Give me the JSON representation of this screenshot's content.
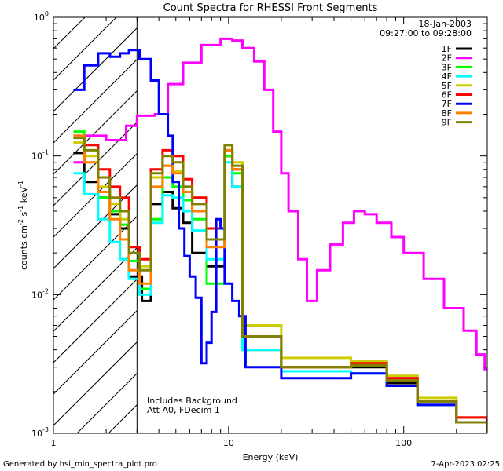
{
  "chart_data": {
    "type": "line",
    "title": "Count Spectra for RHESSI Front Segments",
    "xlabel": "Energy (keV)",
    "ylabel_parts": [
      "counts cm",
      "-2",
      " s",
      "-1",
      " keV",
      "-1"
    ],
    "xscale": "log",
    "yscale": "log",
    "xlim": [
      1,
      300
    ],
    "ylim": [
      0.001,
      1
    ],
    "x_ticks": [
      {
        "value": 1,
        "label": "1"
      },
      {
        "value": 10,
        "label": "10"
      },
      {
        "value": 100,
        "label": "100"
      }
    ],
    "y_ticks": [
      {
        "value": 1,
        "base": "10",
        "exp": "0"
      },
      {
        "value": 0.1,
        "base": "10",
        "exp": "-1"
      },
      {
        "value": 0.01,
        "base": "10",
        "exp": "-2"
      },
      {
        "value": 0.001,
        "base": "10",
        "exp": "-3"
      }
    ],
    "hatch_region_kev": [
      1,
      3
    ],
    "date": "18-Jan-2003",
    "time_range": "09:27:00 to 09:28:00",
    "notes": [
      "Includes Background",
      "Att A0, FDecim 1"
    ],
    "series": [
      {
        "name": "1F",
        "color": "#000000",
        "points": [
          [
            1.3,
            0.105
          ],
          [
            1.5,
            0.065
          ],
          [
            1.8,
            0.05
          ],
          [
            2.1,
            0.038
          ],
          [
            2.4,
            0.03
          ],
          [
            2.7,
            0.0135
          ],
          [
            3.2,
            0.009
          ],
          [
            3.6,
            0.045
          ],
          [
            4.2,
            0.055
          ],
          [
            4.8,
            0.042
          ],
          [
            5.5,
            0.033
          ],
          [
            6.2,
            0.02
          ],
          [
            7.5,
            0.016
          ],
          [
            9.5,
            0.1
          ],
          [
            10.5,
            0.06
          ],
          [
            12,
            0.004
          ],
          [
            20,
            0.003
          ],
          [
            50,
            0.003
          ],
          [
            80,
            0.0023
          ],
          [
            120,
            0.0016
          ],
          [
            200,
            0.0012
          ],
          [
            300,
            0.001
          ]
        ]
      },
      {
        "name": "2F",
        "color": "#ff00ff",
        "points": [
          [
            1.3,
            0.09
          ],
          [
            1.5,
            0.14
          ],
          [
            2,
            0.13
          ],
          [
            2.6,
            0.165
          ],
          [
            3,
            0.195
          ],
          [
            3.8,
            0.2
          ],
          [
            4.5,
            0.33
          ],
          [
            5.5,
            0.47
          ],
          [
            7,
            0.63
          ],
          [
            9,
            0.7
          ],
          [
            10.5,
            0.68
          ],
          [
            12,
            0.6
          ],
          [
            14,
            0.48
          ],
          [
            16,
            0.3
          ],
          [
            18,
            0.15
          ],
          [
            20,
            0.075
          ],
          [
            22,
            0.04
          ],
          [
            25,
            0.018
          ],
          [
            28,
            0.009
          ],
          [
            32,
            0.015
          ],
          [
            38,
            0.023
          ],
          [
            45,
            0.033
          ],
          [
            52,
            0.04
          ],
          [
            60,
            0.038
          ],
          [
            70,
            0.033
          ],
          [
            85,
            0.026
          ],
          [
            100,
            0.02
          ],
          [
            130,
            0.013
          ],
          [
            170,
            0.008
          ],
          [
            220,
            0.0055
          ],
          [
            260,
            0.0037
          ],
          [
            290,
            0.0029
          ]
        ]
      },
      {
        "name": "3F",
        "color": "#00ff00",
        "points": [
          [
            1.3,
            0.15
          ],
          [
            1.5,
            0.12
          ],
          [
            1.8,
            0.05
          ],
          [
            2.1,
            0.04
          ],
          [
            2.4,
            0.032
          ],
          [
            2.7,
            0.0175
          ],
          [
            3.1,
            0.011
          ],
          [
            3.6,
            0.035
          ],
          [
            4.2,
            0.07
          ],
          [
            4.8,
            0.06
          ],
          [
            5.5,
            0.048
          ],
          [
            6.2,
            0.035
          ],
          [
            7.5,
            0.012
          ],
          [
            9.5,
            0.1
          ],
          [
            10.5,
            0.075
          ],
          [
            12,
            0.004
          ],
          [
            20,
            0.003
          ],
          [
            50,
            0.0031
          ],
          [
            80,
            0.0024
          ],
          [
            120,
            0.0016
          ],
          [
            200,
            0.0012
          ],
          [
            300,
            0.001
          ]
        ]
      },
      {
        "name": "4F",
        "color": "#00ffff",
        "points": [
          [
            1.3,
            0.075
          ],
          [
            1.5,
            0.053
          ],
          [
            1.8,
            0.035
          ],
          [
            2.1,
            0.024
          ],
          [
            2.4,
            0.018
          ],
          [
            2.7,
            0.013
          ],
          [
            3.1,
            0.01
          ],
          [
            3.6,
            0.033
          ],
          [
            4.2,
            0.052
          ],
          [
            4.8,
            0.05
          ],
          [
            5.5,
            0.04
          ],
          [
            6.2,
            0.029
          ],
          [
            7.5,
            0.018
          ],
          [
            9.5,
            0.09
          ],
          [
            10.5,
            0.06
          ],
          [
            12,
            0.004
          ],
          [
            20,
            0.0028
          ],
          [
            50,
            0.0027
          ],
          [
            80,
            0.0022
          ],
          [
            120,
            0.0016
          ],
          [
            200,
            0.0012
          ],
          [
            300,
            0.001
          ]
        ]
      },
      {
        "name": "5F",
        "color": "#cccc00",
        "points": [
          [
            1.3,
            0.125
          ],
          [
            1.5,
            0.1
          ],
          [
            1.8,
            0.06
          ],
          [
            2.1,
            0.045
          ],
          [
            2.4,
            0.035
          ],
          [
            2.7,
            0.02
          ],
          [
            3.1,
            0.016
          ],
          [
            3.6,
            0.07
          ],
          [
            4.2,
            0.085
          ],
          [
            4.8,
            0.078
          ],
          [
            5.5,
            0.06
          ],
          [
            6.2,
            0.05
          ],
          [
            7.5,
            0.03
          ],
          [
            9.5,
            0.12
          ],
          [
            10.5,
            0.09
          ],
          [
            12,
            0.006
          ],
          [
            20,
            0.0035
          ],
          [
            50,
            0.0033
          ],
          [
            80,
            0.0026
          ],
          [
            120,
            0.0018
          ],
          [
            200,
            0.0013
          ],
          [
            300,
            0.001
          ]
        ]
      },
      {
        "name": "6F",
        "color": "#ff0000",
        "points": [
          [
            1.3,
            0.14
          ],
          [
            1.5,
            0.12
          ],
          [
            1.8,
            0.08
          ],
          [
            2.1,
            0.06
          ],
          [
            2.4,
            0.05
          ],
          [
            2.7,
            0.022
          ],
          [
            3.1,
            0.018
          ],
          [
            3.6,
            0.08
          ],
          [
            4.2,
            0.11
          ],
          [
            4.8,
            0.1
          ],
          [
            5.5,
            0.068
          ],
          [
            6.2,
            0.05
          ],
          [
            7.5,
            0.03
          ],
          [
            9.5,
            0.11
          ],
          [
            10.5,
            0.08
          ],
          [
            12,
            0.005
          ],
          [
            20,
            0.003
          ],
          [
            50,
            0.0032
          ],
          [
            80,
            0.0025
          ],
          [
            120,
            0.0017
          ],
          [
            200,
            0.0013
          ],
          [
            300,
            0.001
          ]
        ]
      },
      {
        "name": "7F",
        "color": "#0000ff",
        "points": [
          [
            1.3,
            0.3
          ],
          [
            1.5,
            0.45
          ],
          [
            1.8,
            0.55
          ],
          [
            2.1,
            0.52
          ],
          [
            2.4,
            0.55
          ],
          [
            2.7,
            0.58
          ],
          [
            3.1,
            0.5
          ],
          [
            3.6,
            0.35
          ],
          [
            4,
            0.2
          ],
          [
            4.5,
            0.14
          ],
          [
            4.8,
            0.065
          ],
          [
            5.2,
            0.03
          ],
          [
            5.6,
            0.019
          ],
          [
            6,
            0.0135
          ],
          [
            6.5,
            0.0095
          ],
          [
            7,
            0.0032
          ],
          [
            7.5,
            0.0045
          ],
          [
            8,
            0.0075
          ],
          [
            8.5,
            0.035
          ],
          [
            9,
            0.03
          ],
          [
            9.5,
            0.012
          ],
          [
            10.5,
            0.009
          ],
          [
            11.5,
            0.007
          ],
          [
            12.5,
            0.003
          ],
          [
            20,
            0.0025
          ],
          [
            50,
            0.0027
          ],
          [
            80,
            0.0022
          ],
          [
            120,
            0.0016
          ],
          [
            200,
            0.0012
          ],
          [
            300,
            0.001
          ]
        ]
      },
      {
        "name": "8F",
        "color": "#ff8000",
        "points": [
          [
            1.3,
            0.14
          ],
          [
            1.5,
            0.09
          ],
          [
            1.8,
            0.055
          ],
          [
            2.1,
            0.035
          ],
          [
            2.4,
            0.025
          ],
          [
            2.7,
            0.015
          ],
          [
            3.1,
            0.012
          ],
          [
            3.6,
            0.06
          ],
          [
            4.2,
            0.085
          ],
          [
            4.8,
            0.075
          ],
          [
            5.5,
            0.055
          ],
          [
            6.2,
            0.04
          ],
          [
            7.5,
            0.022
          ],
          [
            9.5,
            0.11
          ],
          [
            10.5,
            0.08
          ],
          [
            12,
            0.005
          ],
          [
            20,
            0.003
          ],
          [
            50,
            0.0031
          ],
          [
            80,
            0.0024
          ],
          [
            120,
            0.0017
          ],
          [
            200,
            0.0012
          ],
          [
            300,
            0.001
          ]
        ]
      },
      {
        "name": "9F",
        "color": "#808000",
        "points": [
          [
            1.3,
            0.135
          ],
          [
            1.5,
            0.11
          ],
          [
            1.8,
            0.07
          ],
          [
            2.1,
            0.05
          ],
          [
            2.4,
            0.04
          ],
          [
            2.7,
            0.02
          ],
          [
            3.1,
            0.015
          ],
          [
            3.6,
            0.075
          ],
          [
            4.2,
            0.1
          ],
          [
            4.8,
            0.09
          ],
          [
            5.5,
            0.06
          ],
          [
            6.2,
            0.045
          ],
          [
            7.5,
            0.025
          ],
          [
            9.5,
            0.12
          ],
          [
            10.5,
            0.085
          ],
          [
            12,
            0.005
          ],
          [
            20,
            0.003
          ],
          [
            50,
            0.0031
          ],
          [
            80,
            0.0024
          ],
          [
            120,
            0.0017
          ],
          [
            200,
            0.0012
          ],
          [
            300,
            0.001
          ]
        ]
      }
    ]
  },
  "footer": {
    "generated_by": "Generated by hsi_min_spectra_plot.pro",
    "timestamp": "7-Apr-2023 02:25"
  }
}
